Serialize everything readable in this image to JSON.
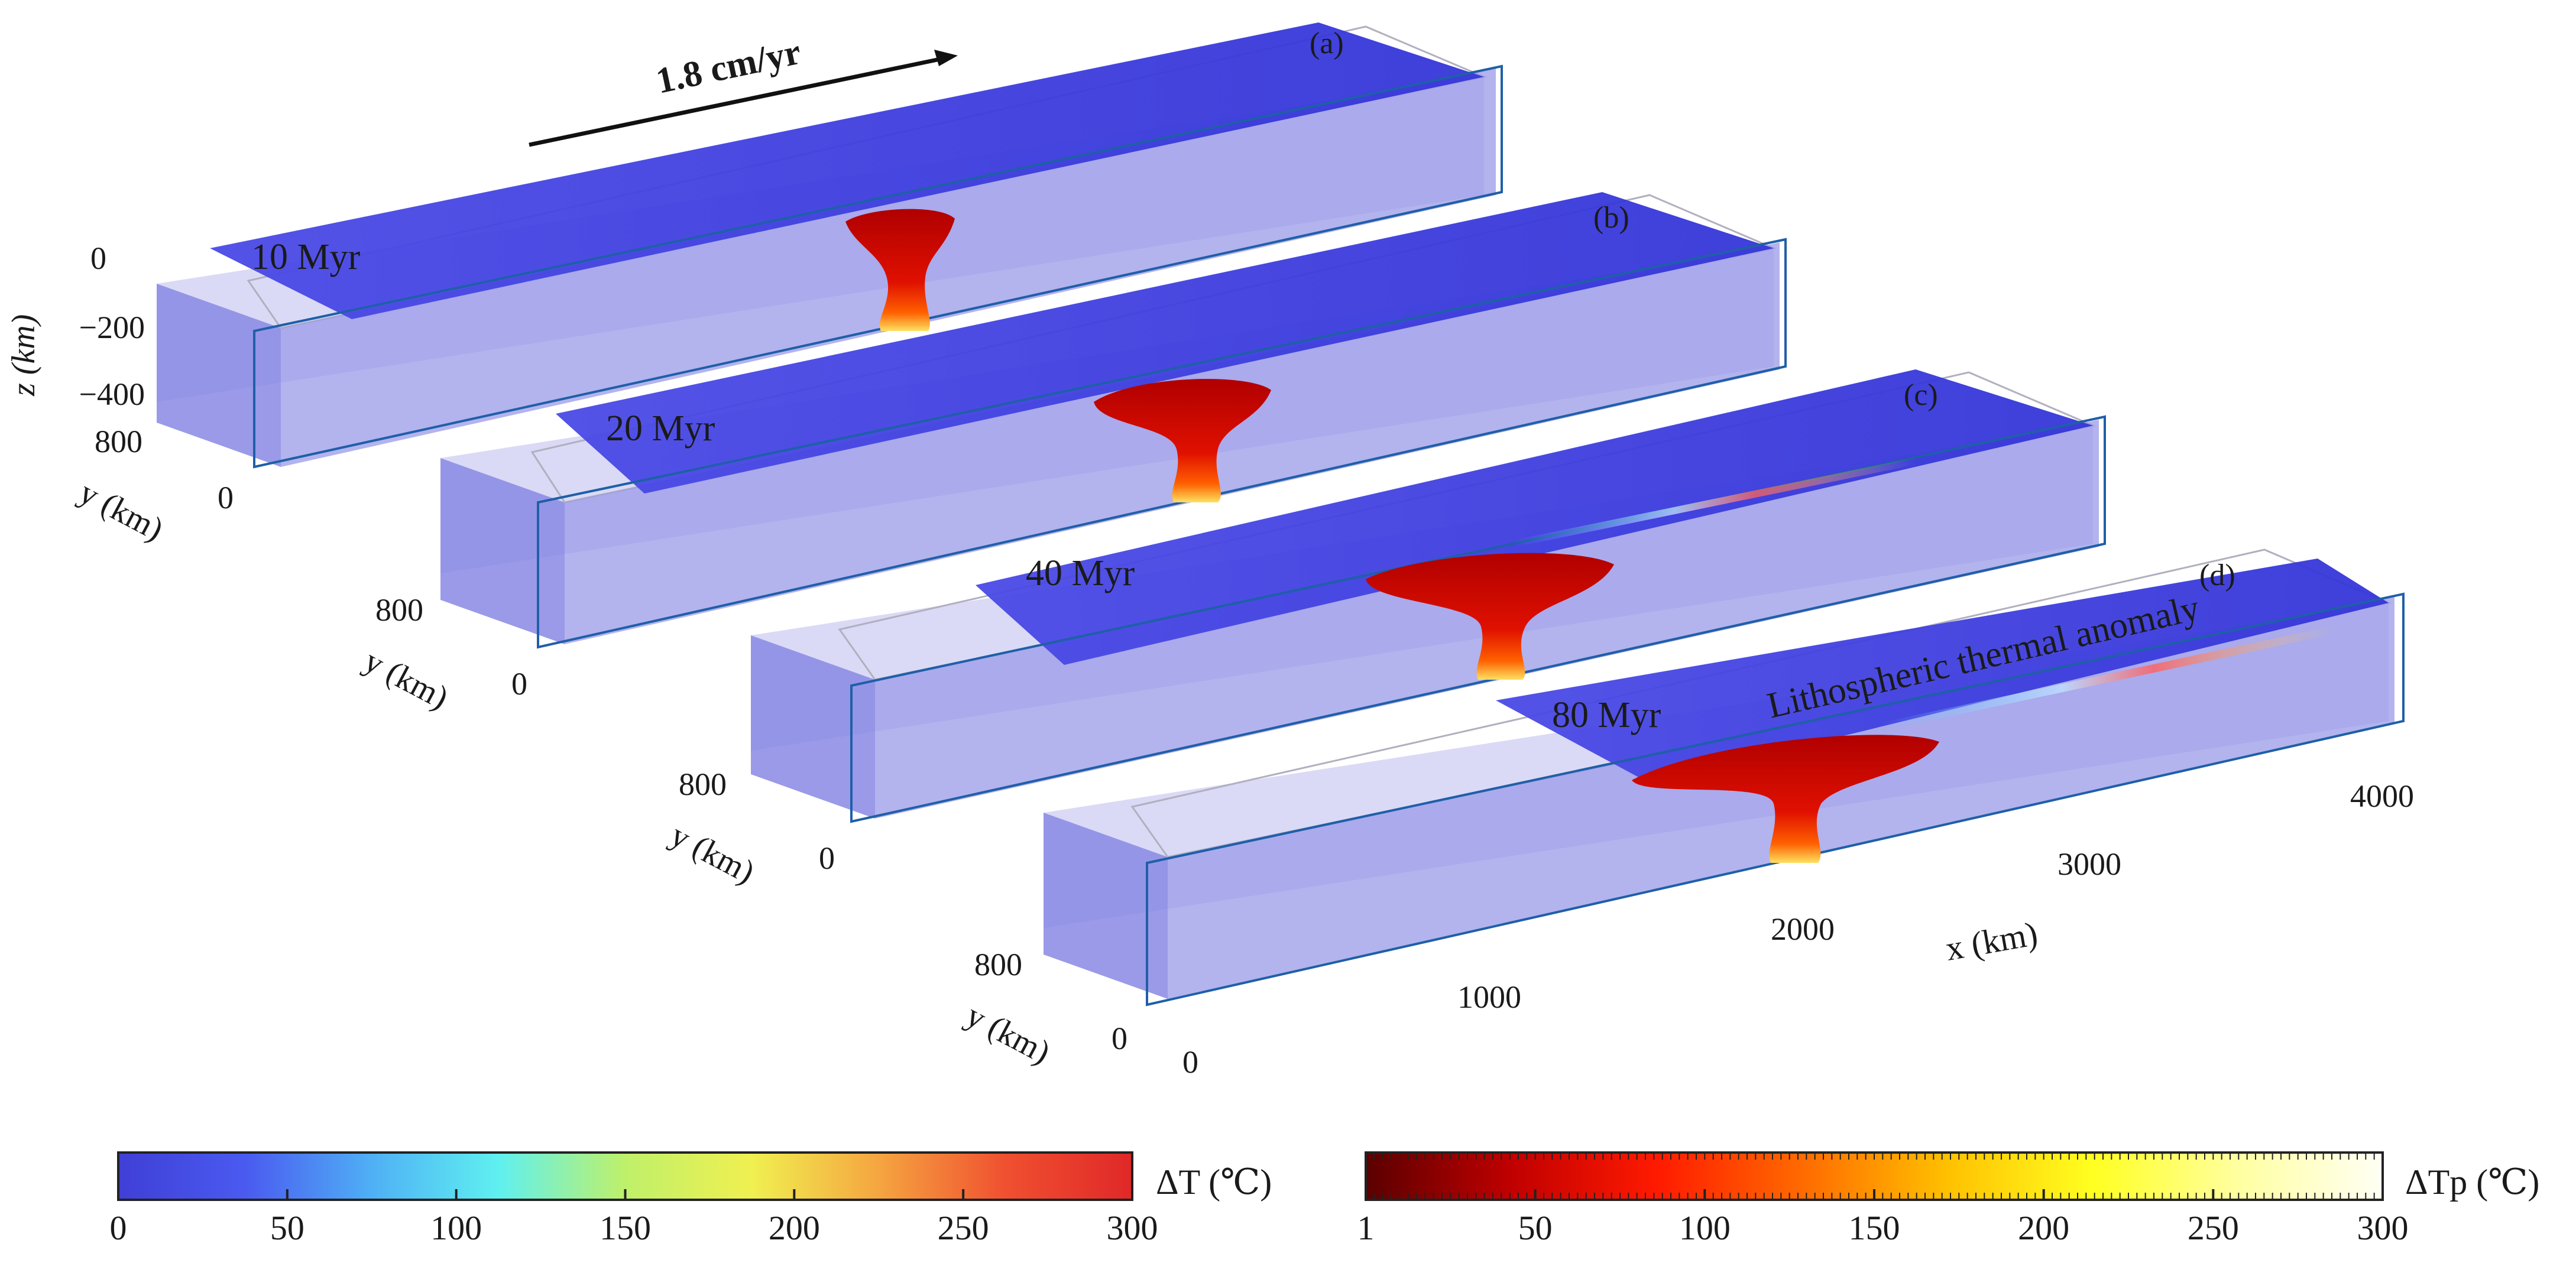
{
  "velocity": {
    "label": "1.8 cm/yr"
  },
  "panels": [
    {
      "id": "(a)",
      "time": "10 Myr"
    },
    {
      "id": "(b)",
      "time": "20 Myr"
    },
    {
      "id": "(c)",
      "time": "40 Myr"
    },
    {
      "id": "(d)",
      "time": "80 Myr",
      "annotation": "Lithospheric thermal anomaly"
    }
  ],
  "axes": {
    "z_label": "z (km)",
    "z_ticks": [
      "0",
      "−200",
      "−400"
    ],
    "y_label": "y (km)",
    "y_ticks": [
      "800",
      "0"
    ],
    "x_label": "x (km)",
    "x_ticks": [
      "0",
      "1000",
      "2000",
      "3000",
      "4000"
    ]
  },
  "colorbars": [
    {
      "name": "delta-t",
      "label": "ΔT (℃)",
      "ticks": [
        "0",
        "50",
        "100",
        "150",
        "200",
        "250",
        "300"
      ],
      "stops": [
        "#3f3fd6",
        "#4a5af0",
        "#4fb0f5",
        "#5ff0f0",
        "#bff06a",
        "#f0f050",
        "#f5a540",
        "#f05030",
        "#e02828"
      ]
    },
    {
      "name": "delta-tp",
      "label": "ΔTp (℃)",
      "ticks": [
        "1",
        "50",
        "100",
        "150",
        "200",
        "250",
        "300"
      ],
      "stops": [
        "#5a0000",
        "#c00000",
        "#ff1a00",
        "#ff6a00",
        "#ffc000",
        "#ffff20",
        "#ffffa0",
        "#fffff5"
      ]
    }
  ],
  "colors": {
    "slab_top": "#3e3ee0",
    "slab_side": "#8e8ee6",
    "plume": "#d40000",
    "frame": "#1f5fa8"
  }
}
